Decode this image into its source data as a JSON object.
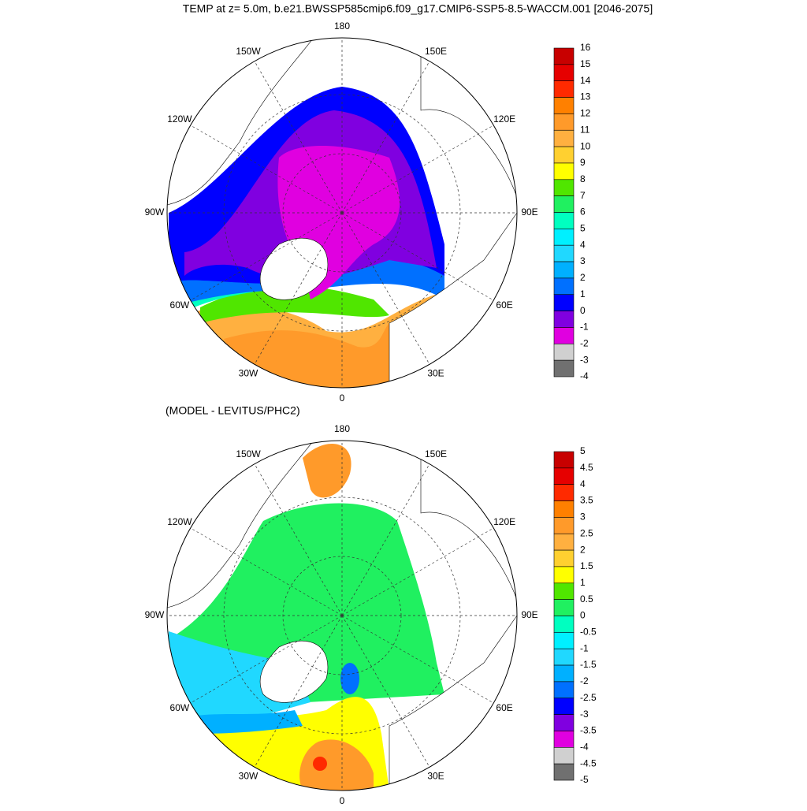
{
  "title": "TEMP at z=   5.0m, b.e21.BWSSP585cmip6.f09_g17.CMIP6-SSP5-8.5-WACCM.001 [2046-2075]",
  "maps": [
    {
      "longitude_labels": [
        "180",
        "150E",
        "120E",
        "90E",
        "60E",
        "30E",
        "0",
        "30W",
        "60W",
        "90W",
        "120W",
        "150W"
      ],
      "colorbar": {
        "ticks": [
          16,
          15,
          14,
          13,
          12,
          11,
          10,
          9,
          8,
          7,
          6,
          5,
          4,
          3,
          2,
          1,
          0,
          -1,
          -2,
          -3,
          -4
        ],
        "colors": [
          "#c80000",
          "#e60000",
          "#ff2a00",
          "#ff8000",
          "#ff9a2a",
          "#ffb040",
          "#ffd030",
          "#ffff00",
          "#50e600",
          "#20f060",
          "#00ffc0",
          "#00f0ff",
          "#20d8ff",
          "#00b0ff",
          "#0070ff",
          "#0000ff",
          "#8000e0",
          "#e000e0",
          "#d0d0d0",
          "#707070"
        ]
      }
    },
    {
      "subtitle": "(MODEL - LEVITUS/PHC2)",
      "longitude_labels": [
        "180",
        "150E",
        "120E",
        "90E",
        "60E",
        "30E",
        "0",
        "30W",
        "60W",
        "90W",
        "120W",
        "150W"
      ],
      "colorbar": {
        "ticks": [
          5,
          4.5,
          4,
          3.5,
          3,
          2.5,
          2,
          1.5,
          1,
          0.5,
          0,
          -0.5,
          -1,
          -1.5,
          -2,
          -2.5,
          -3,
          -3.5,
          -4,
          -4.5,
          -5
        ],
        "colors": [
          "#c80000",
          "#e60000",
          "#ff2a00",
          "#ff8000",
          "#ff9a2a",
          "#ffb040",
          "#ffd030",
          "#ffff00",
          "#50e600",
          "#20f060",
          "#00ffc0",
          "#00f0ff",
          "#20d8ff",
          "#00b0ff",
          "#0070ff",
          "#0000ff",
          "#8000e0",
          "#e000e0",
          "#d0d0d0",
          "#707070"
        ]
      }
    }
  ]
}
